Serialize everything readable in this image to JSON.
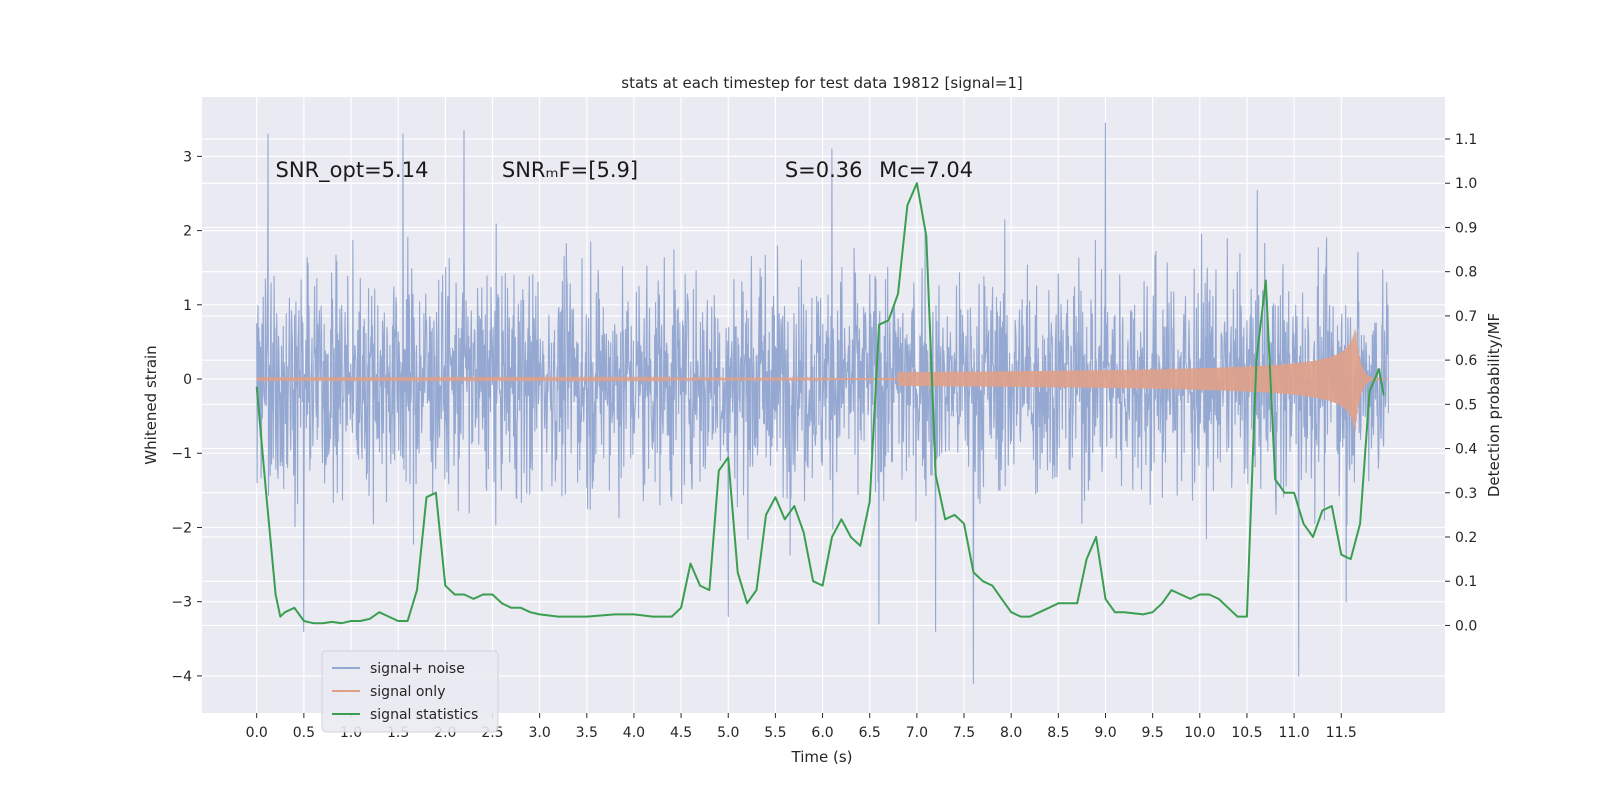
{
  "chart_data": {
    "type": "line",
    "title": "stats at each timestep for test data 19812 [signal=1]",
    "xlabel": "Time (s)",
    "ylabel": "Whitened strain",
    "ylabel_right": "Detection probability/MF",
    "xlim": [
      -0.58,
      12.6
    ],
    "ylim": [
      -4.5,
      3.8
    ],
    "ylim_right": [
      -0.198,
      1.195
    ],
    "x_ticks": [
      0.0,
      0.5,
      1.0,
      1.5,
      2.0,
      2.5,
      3.0,
      3.5,
      4.0,
      4.5,
      5.0,
      5.5,
      6.0,
      6.5,
      7.0,
      7.5,
      8.0,
      8.5,
      9.0,
      9.5,
      10.0,
      10.5,
      11.0,
      11.5
    ],
    "x_tick_labels": [
      "0.0",
      "0.5",
      "1.0",
      "1.5",
      "2.0",
      "2.5",
      "3.0",
      "3.5",
      "4.0",
      "4.5",
      "5.0",
      "5.5",
      "6.0",
      "6.5",
      "7.0",
      "7.5",
      "8.0",
      "8.5",
      "9.0",
      "9.5",
      "10.0",
      "10.5",
      "11.0",
      "11.5"
    ],
    "y_ticks": [
      -4,
      -3,
      -2,
      -1,
      0,
      1,
      2,
      3
    ],
    "y_tick_labels": [
      "−4",
      "−3",
      "−2",
      "−1",
      "0",
      "1",
      "2",
      "3"
    ],
    "y_ticks_right": [
      0.0,
      0.1,
      0.2,
      0.3,
      0.4,
      0.5,
      0.6,
      0.7,
      0.8,
      0.9,
      1.0,
      1.1
    ],
    "y_tick_labels_right": [
      "0.0",
      "0.1",
      "0.2",
      "0.3",
      "0.4",
      "0.5",
      "0.6",
      "0.7",
      "0.8",
      "0.9",
      "1.0",
      "1.1"
    ],
    "grid": true,
    "legend_placement": "lower-left",
    "annotations": [
      {
        "name": "snr-opt",
        "text": "SNR_opt=5.14",
        "x": 0.2,
        "y": 2.72
      },
      {
        "name": "snr-mf",
        "text": "SNRₘF=[5.9]",
        "x": 2.6,
        "y": 2.72
      },
      {
        "name": "spin",
        "text": "S=0.36",
        "x": 5.6,
        "y": 2.72
      },
      {
        "name": "chirp-mass",
        "text": "Mᴄ=7.04",
        "x": 6.6,
        "y": 2.72
      }
    ],
    "series": [
      {
        "name": "signal+ noise",
        "color": "#95a8d1",
        "axis": "left",
        "style": "noise",
        "x_range": [
          0.0,
          12.0
        ],
        "peaks_x": [
          0.12,
          0.5,
          1.55,
          2.2,
          5.0,
          6.1,
          6.6,
          7.2,
          7.6,
          9.0,
          11.05,
          11.55
        ],
        "peaks_y": [
          3.3,
          -3.4,
          3.3,
          3.35,
          -3.2,
          3.1,
          -3.3,
          -3.4,
          -4.1,
          3.45,
          -4.0,
          -3.0
        ]
      },
      {
        "name": "signal only",
        "color": "#e0a087",
        "axis": "left",
        "style": "chirp",
        "x_range": [
          0.0,
          12.0
        ],
        "merger_x": 11.65,
        "peak_amplitude": 0.7
      },
      {
        "name": "signal statistics",
        "color": "#3a9e50",
        "axis": "right",
        "style": "line",
        "x": [
          0.0,
          0.1,
          0.2,
          0.25,
          0.3,
          0.4,
          0.5,
          0.6,
          0.7,
          0.8,
          0.9,
          1.0,
          1.1,
          1.2,
          1.3,
          1.4,
          1.5,
          1.6,
          1.7,
          1.8,
          1.9,
          2.0,
          2.1,
          2.2,
          2.3,
          2.4,
          2.5,
          2.6,
          2.7,
          2.8,
          2.9,
          3.0,
          3.2,
          3.5,
          3.8,
          4.0,
          4.2,
          4.4,
          4.5,
          4.6,
          4.7,
          4.8,
          4.9,
          5.0,
          5.1,
          5.2,
          5.3,
          5.4,
          5.5,
          5.6,
          5.7,
          5.8,
          5.9,
          6.0,
          6.1,
          6.2,
          6.3,
          6.4,
          6.5,
          6.6,
          6.7,
          6.8,
          6.9,
          7.0,
          7.1,
          7.2,
          7.3,
          7.4,
          7.5,
          7.6,
          7.7,
          7.8,
          7.9,
          8.0,
          8.1,
          8.2,
          8.3,
          8.4,
          8.5,
          8.6,
          8.7,
          8.8,
          8.9,
          9.0,
          9.1,
          9.2,
          9.4,
          9.5,
          9.6,
          9.7,
          9.8,
          9.9,
          10.0,
          10.1,
          10.2,
          10.3,
          10.4,
          10.5,
          10.6,
          10.7,
          10.8,
          10.9,
          11.0,
          11.1,
          11.2,
          11.3,
          11.4,
          11.5,
          11.6,
          11.7,
          11.8,
          11.9,
          11.95
        ],
        "y": [
          0.54,
          0.3,
          0.07,
          0.02,
          0.03,
          0.04,
          0.01,
          0.005,
          0.005,
          0.008,
          0.005,
          0.01,
          0.01,
          0.015,
          0.03,
          0.02,
          0.01,
          0.01,
          0.08,
          0.29,
          0.3,
          0.09,
          0.07,
          0.07,
          0.06,
          0.07,
          0.07,
          0.05,
          0.04,
          0.04,
          0.03,
          0.025,
          0.02,
          0.02,
          0.025,
          0.025,
          0.02,
          0.02,
          0.04,
          0.14,
          0.09,
          0.08,
          0.35,
          0.38,
          0.12,
          0.05,
          0.08,
          0.25,
          0.29,
          0.24,
          0.27,
          0.21,
          0.1,
          0.09,
          0.2,
          0.24,
          0.2,
          0.18,
          0.28,
          0.68,
          0.69,
          0.75,
          0.95,
          1.0,
          0.88,
          0.34,
          0.24,
          0.25,
          0.23,
          0.12,
          0.1,
          0.09,
          0.06,
          0.03,
          0.02,
          0.02,
          0.03,
          0.04,
          0.05,
          0.05,
          0.05,
          0.15,
          0.2,
          0.06,
          0.03,
          0.03,
          0.025,
          0.03,
          0.05,
          0.08,
          0.07,
          0.06,
          0.07,
          0.07,
          0.06,
          0.04,
          0.02,
          0.02,
          0.6,
          0.78,
          0.33,
          0.3,
          0.3,
          0.23,
          0.2,
          0.26,
          0.27,
          0.16,
          0.15,
          0.23,
          0.53,
          0.58,
          0.52
        ]
      }
    ]
  }
}
